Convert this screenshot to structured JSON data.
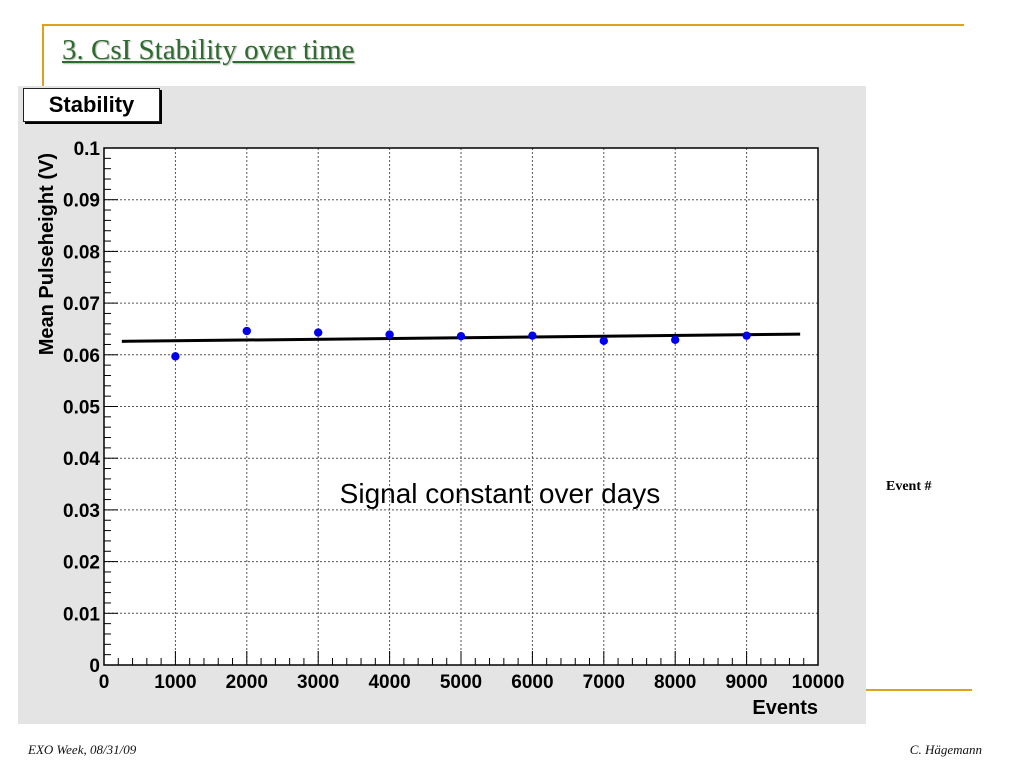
{
  "slide": {
    "title": "3. CsI Stability over time",
    "side_label": "Event #",
    "footer_left": "EXO Week, 08/31/09",
    "footer_right": "C. Hägemann",
    "accent_color": "#e0a020",
    "title_color": "#2e6b2e"
  },
  "chart_data": {
    "type": "scatter",
    "title": "Stability",
    "xlabel": "Events",
    "ylabel": "Mean Pulseheight (V)",
    "xlim": [
      0,
      10000
    ],
    "ylim": [
      0,
      0.1
    ],
    "xticks": [
      "0",
      "1000",
      "2000",
      "3000",
      "4000",
      "5000",
      "6000",
      "7000",
      "8000",
      "9000",
      "10000"
    ],
    "yticks": [
      "0",
      "0.01",
      "0.02",
      "0.03",
      "0.04",
      "0.05",
      "0.06",
      "0.07",
      "0.08",
      "0.09",
      "0.1"
    ],
    "grid": true,
    "annotation": "Signal constant over days",
    "series": [
      {
        "color": "#0000ee",
        "points": [
          {
            "x": 1000,
            "y": 0.0597
          },
          {
            "x": 2000,
            "y": 0.0646
          },
          {
            "x": 3000,
            "y": 0.0643
          },
          {
            "x": 4000,
            "y": 0.0639
          },
          {
            "x": 5000,
            "y": 0.0636
          },
          {
            "x": 6000,
            "y": 0.0637
          },
          {
            "x": 7000,
            "y": 0.0627
          },
          {
            "x": 8000,
            "y": 0.0629
          },
          {
            "x": 9000,
            "y": 0.0637
          }
        ]
      }
    ],
    "fit_line": {
      "color": "#000000",
      "x": [
        250,
        9750
      ],
      "y": [
        0.0626,
        0.064
      ]
    }
  }
}
